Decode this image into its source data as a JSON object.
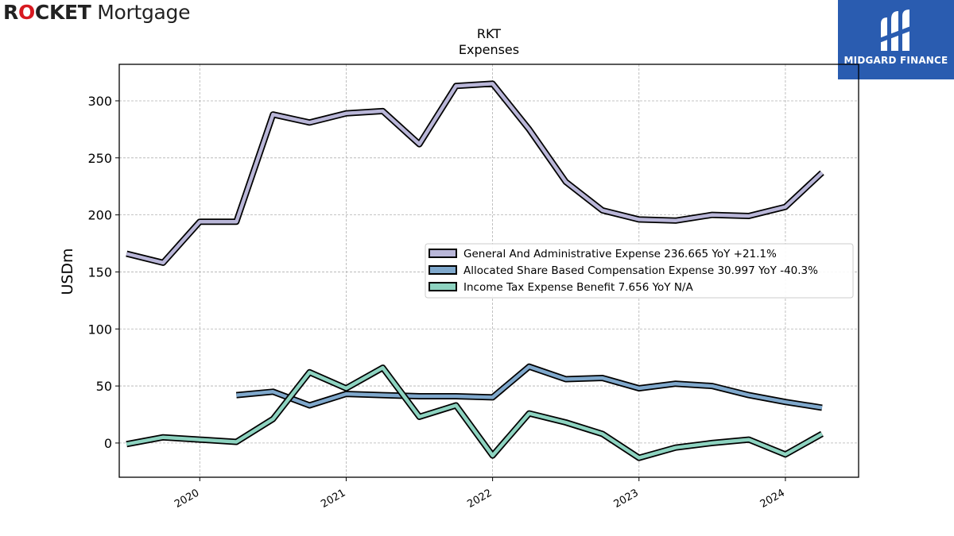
{
  "header": {
    "left_logo": {
      "brand_part1": "R",
      "brand_o": "O",
      "brand_part2": "CKET",
      "brand_word2": "Mortgage",
      "icon": "rocket-mortgage-logo"
    },
    "right_logo": {
      "name": "MIDGARD FINANCE",
      "icon": "midgard-finance-logo",
      "bg": "#2a5cb0"
    }
  },
  "chart_data": {
    "type": "line",
    "title": "RKT",
    "subtitle": "Expenses",
    "xlabel": "",
    "ylabel": "USDm",
    "ylim": [
      -30,
      332
    ],
    "xlim": [
      2019.45,
      2024.5
    ],
    "y_ticks": [
      0,
      50,
      100,
      150,
      200,
      250,
      300
    ],
    "x_ticks": [
      {
        "value": 2020,
        "label": "2020"
      },
      {
        "value": 2021,
        "label": "2021"
      },
      {
        "value": 2022,
        "label": "2022"
      },
      {
        "value": 2023,
        "label": "2023"
      },
      {
        "value": 2024,
        "label": "2024"
      }
    ],
    "grid": true,
    "legend_position": "center-right",
    "series": [
      {
        "name": "General And Administrative Expense  236.665 YoY +21.1%",
        "color": "#b9b6d8",
        "x": [
          2019.5,
          2019.75,
          2020.0,
          2020.25,
          2020.5,
          2020.75,
          2021.0,
          2021.25,
          2021.5,
          2021.75,
          2022.0,
          2022.25,
          2022.5,
          2022.75,
          2023.0,
          2023.25,
          2023.5,
          2023.75,
          2024.0,
          2024.25
        ],
        "values": [
          166,
          158,
          194,
          194,
          288,
          281,
          289,
          291,
          262,
          313,
          315,
          275,
          229,
          204,
          196,
          195,
          200,
          199,
          207,
          237
        ]
      },
      {
        "name": "Allocated Share Based Compensation Expense  30.997 YoY -40.3%",
        "color": "#7fa8cc",
        "x": [
          2020.25,
          2020.5,
          2020.75,
          2021.0,
          2021.25,
          2021.5,
          2021.75,
          2022.0,
          2022.25,
          2022.5,
          2022.75,
          2023.0,
          2023.25,
          2023.5,
          2023.75,
          2024.0,
          2024.25
        ],
        "values": [
          42,
          45,
          33,
          43,
          42,
          41,
          41,
          40,
          67,
          56,
          57,
          48,
          52,
          50,
          42,
          36,
          31
        ]
      },
      {
        "name": "Income Tax Expense Benefit  7.656 YoY N/A",
        "color": "#8dd3c0",
        "x": [
          2019.5,
          2019.75,
          2020.0,
          2020.25,
          2020.5,
          2020.75,
          2021.0,
          2021.25,
          2021.5,
          2021.75,
          2022.0,
          2022.25,
          2022.5,
          2022.75,
          2023.0,
          2023.25,
          2023.5,
          2023.75,
          2024.0,
          2024.25
        ],
        "values": [
          -1,
          5,
          3,
          1,
          21,
          62,
          48,
          66,
          23,
          33,
          -11,
          26,
          18,
          8,
          -13,
          -4,
          0,
          3,
          -10,
          8
        ]
      }
    ]
  }
}
